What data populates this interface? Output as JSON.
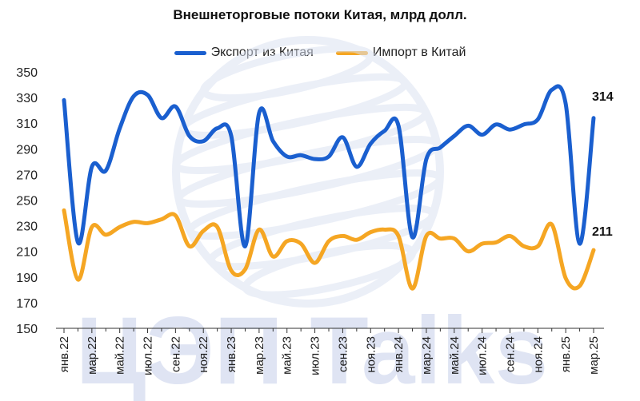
{
  "chart_data": {
    "type": "line",
    "title": "Внешнеторговые потоки Китая, млрд долл.",
    "xlabel": "",
    "ylabel": "",
    "ylim": [
      150,
      350
    ],
    "yticks": [
      150,
      170,
      190,
      210,
      230,
      250,
      270,
      290,
      310,
      330,
      350
    ],
    "x": [
      "янв.22",
      "фев.22",
      "мар.22",
      "апр.22",
      "май.22",
      "июн.22",
      "июл.22",
      "авг.22",
      "сен.22",
      "окт.22",
      "ноя.22",
      "дек.22",
      "янв.23",
      "фев.23",
      "мар.23",
      "апр.23",
      "май.23",
      "июн.23",
      "июл.23",
      "авг.23",
      "сен.23",
      "окт.23",
      "ноя.23",
      "дек.23",
      "янв.24",
      "фев.24",
      "мар.24",
      "апр.24",
      "май.24",
      "июн.24",
      "июл.24",
      "авг.24",
      "сен.24",
      "окт.24",
      "ноя.24",
      "дек.24",
      "янв.25",
      "фев.25",
      "мар.25"
    ],
    "xtick_labels": [
      "янв.22",
      "мар.22",
      "май.22",
      "июл.22",
      "сен.22",
      "ноя.22",
      "янв.23",
      "мар.23",
      "май.23",
      "июл.23",
      "сен.23",
      "ноя.23",
      "янв.24",
      "мар.24",
      "май.24",
      "июл.24",
      "сен.24",
      "ноя.24",
      "янв.25",
      "мар.25"
    ],
    "grid": false,
    "legend_position": "top-center",
    "series": [
      {
        "name": "Экспорт из Китая",
        "color": "#1a5fcf",
        "values": [
          328,
          217,
          276,
          273,
          306,
          331,
          332,
          314,
          323,
          300,
          296,
          306,
          300,
          214,
          318,
          296,
          284,
          285,
          282,
          284,
          299,
          276,
          294,
          304,
          308,
          221,
          282,
          291,
          300,
          308,
          301,
          309,
          305,
          309,
          313,
          336,
          325,
          216,
          314
        ]
      },
      {
        "name": "Импорт в Китай",
        "color": "#f5a623",
        "values": [
          242,
          188,
          229,
          223,
          229,
          233,
          232,
          235,
          238,
          214,
          226,
          229,
          195,
          196,
          227,
          206,
          218,
          216,
          201,
          218,
          222,
          219,
          225,
          227,
          222,
          181,
          222,
          220,
          220,
          210,
          216,
          217,
          222,
          214,
          214,
          231,
          189,
          183,
          211
        ]
      }
    ],
    "annotations": [
      {
        "text": "314",
        "series": "Экспорт из Китая",
        "at": "мар.25"
      },
      {
        "text": "211",
        "series": "Импорт в Китай",
        "at": "мар.25"
      }
    ],
    "watermark": {
      "text": "ЦЭП Talks",
      "color": "#dfe4f3",
      "logo": "globe-logo"
    }
  }
}
